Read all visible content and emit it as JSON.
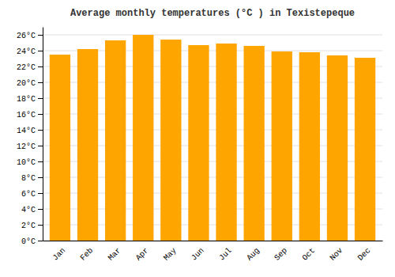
{
  "chart_data": {
    "type": "bar",
    "title": "Average monthly temperatures (°C ) in Texistepeque",
    "categories": [
      "Jan",
      "Feb",
      "Mar",
      "Apr",
      "May",
      "Jun",
      "Jul",
      "Aug",
      "Sep",
      "Oct",
      "Nov",
      "Dec"
    ],
    "values": [
      23.5,
      24.2,
      25.3,
      26.0,
      25.4,
      24.7,
      24.9,
      24.6,
      23.9,
      23.8,
      23.4,
      23.1
    ],
    "color": "#FFA500",
    "ylim": [
      0,
      27
    ],
    "yticks": [
      {
        "value": 0,
        "label": "0°C"
      },
      {
        "value": 2,
        "label": "2°C"
      },
      {
        "value": 4,
        "label": "4°C"
      },
      {
        "value": 6,
        "label": "6°C"
      },
      {
        "value": 8,
        "label": "8°C"
      },
      {
        "value": 10,
        "label": "10°C"
      },
      {
        "value": 12,
        "label": "12°C"
      },
      {
        "value": 14,
        "label": "14°C"
      },
      {
        "value": 16,
        "label": "16°C"
      },
      {
        "value": 18,
        "label": "18°C"
      },
      {
        "value": 20,
        "label": "20°C"
      },
      {
        "value": 22,
        "label": "22°C"
      },
      {
        "value": 24,
        "label": "24°C"
      },
      {
        "value": 26,
        "label": "26°C"
      }
    ],
    "grid": true
  }
}
